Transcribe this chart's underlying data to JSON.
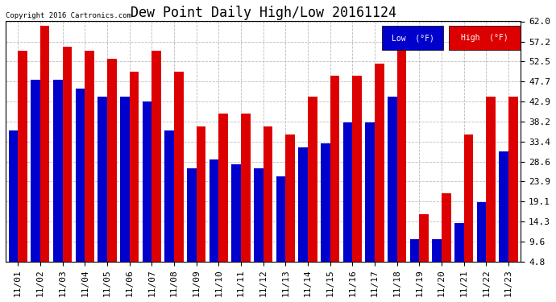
{
  "title": "Dew Point Daily High/Low 20161124",
  "copyright": "Copyright 2016 Cartronics.com",
  "categories": [
    "11/01",
    "11/02",
    "11/03",
    "11/04",
    "11/05",
    "11/06",
    "11/07",
    "11/08",
    "11/09",
    "11/10",
    "11/11",
    "11/12",
    "11/13",
    "11/14",
    "11/15",
    "11/16",
    "11/17",
    "11/18",
    "11/19",
    "11/20",
    "11/21",
    "11/22",
    "11/23"
  ],
  "low_values": [
    36,
    48,
    48,
    46,
    44,
    44,
    43,
    36,
    27,
    29,
    28,
    27,
    25,
    32,
    33,
    38,
    38,
    44,
    10,
    10,
    14,
    19,
    31
  ],
  "high_values": [
    55,
    61,
    56,
    55,
    53,
    50,
    55,
    50,
    37,
    40,
    40,
    37,
    35,
    44,
    49,
    49,
    52,
    57,
    16,
    21,
    35,
    44,
    44
  ],
  "low_color": "#0000cc",
  "high_color": "#dd0000",
  "ylim_min": 4.8,
  "ylim_max": 62.0,
  "yticks": [
    4.8,
    9.6,
    14.3,
    19.1,
    23.9,
    28.6,
    33.4,
    38.2,
    42.9,
    47.7,
    52.5,
    57.2,
    62.0
  ],
  "background_color": "#ffffff",
  "grid_color": "#bbbbbb",
  "bar_width": 0.42,
  "title_fontsize": 12,
  "tick_fontsize": 8,
  "legend_low_label": "Low  (°F)",
  "legend_high_label": "High  (°F)"
}
